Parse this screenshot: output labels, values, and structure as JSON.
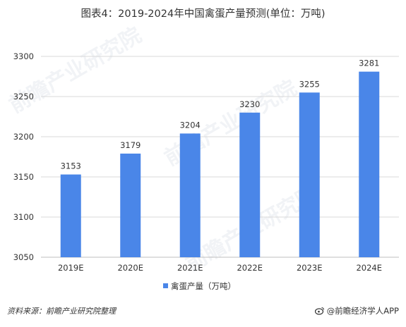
{
  "title": "图表4：2019-2024年中国禽蛋产量预测(单位：万吨)",
  "chart_data": {
    "type": "bar",
    "categories": [
      "2019E",
      "2020E",
      "2021E",
      "2022E",
      "2023E",
      "2024E"
    ],
    "series": [
      {
        "name": "禽蛋产量（万吨）",
        "values": [
          3153,
          3179,
          3204,
          3230,
          3255,
          3281
        ]
      }
    ],
    "ylim": [
      3050,
      3300
    ],
    "yticks": [
      3050,
      3100,
      3150,
      3200,
      3250,
      3300
    ],
    "grid": true,
    "legend_position": "bottom",
    "bar_color": "#4A86E8"
  },
  "legend": {
    "label": "禽蛋产量（万吨）"
  },
  "footer": {
    "source": "资料来源：前瞻产业研究院整理",
    "brand": "@前瞻经济学人APP",
    "brand_icon": "weibo-like-icon"
  },
  "watermarks": [
    "前瞻产业研究院",
    "前瞻产业研究院",
    "前瞻产业研究院"
  ]
}
